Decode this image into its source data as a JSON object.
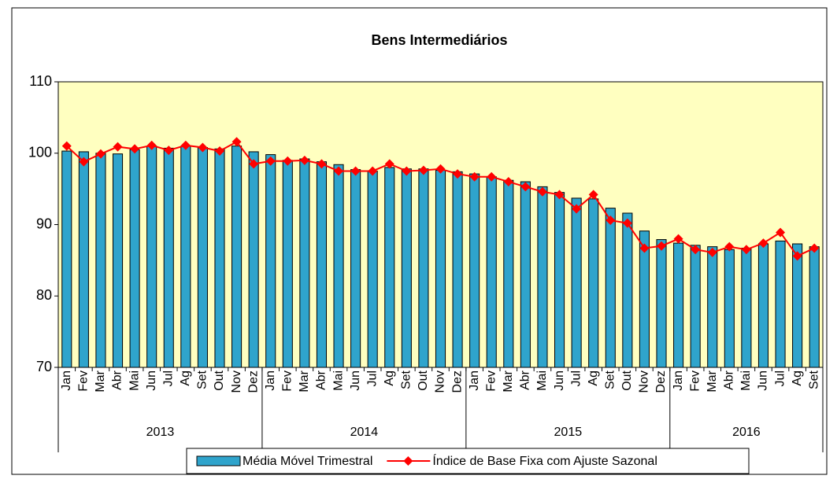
{
  "chart_data": {
    "type": "bar_line",
    "title": "Bens Intermediários",
    "categories": [
      "Jan",
      "Fev",
      "Mar",
      "Abr",
      "Mai",
      "Jun",
      "Jul",
      "Ag",
      "Set",
      "Out",
      "Nov",
      "Dez",
      "Jan",
      "Fev",
      "Mar",
      "Abr",
      "Mai",
      "Jun",
      "Jul",
      "Ag",
      "Set",
      "Out",
      "Nov",
      "Dez",
      "Jan",
      "Fev",
      "Mar",
      "Abr",
      "Mai",
      "Jun",
      "Jul",
      "Ag",
      "Set",
      "Out",
      "Nov",
      "Dez",
      "Jan",
      "Fev",
      "Mar",
      "Abr",
      "Mai",
      "Jun",
      "Jul",
      "Ag",
      "Set"
    ],
    "year_groups": [
      {
        "label": "2013",
        "span": 12
      },
      {
        "label": "2014",
        "span": 12
      },
      {
        "label": "2015",
        "span": 12
      },
      {
        "label": "2016",
        "span": 9
      }
    ],
    "series": [
      {
        "name": "Média Móvel Trimestral",
        "type": "bar",
        "color": "#2fa4cc",
        "values": [
          100.3,
          100.2,
          100.0,
          99.9,
          100.5,
          101.0,
          100.7,
          101.0,
          100.8,
          100.6,
          101.0,
          100.2,
          99.8,
          99.0,
          99.2,
          98.8,
          98.4,
          97.7,
          97.5,
          98.0,
          97.8,
          97.8,
          97.6,
          97.4,
          97.1,
          96.7,
          96.2,
          96.0,
          95.3,
          94.5,
          93.7,
          93.6,
          92.3,
          91.6,
          89.1,
          87.9,
          87.4,
          87.1,
          86.9,
          86.5,
          86.7,
          87.3,
          87.7,
          87.3,
          86.9
        ]
      },
      {
        "name": "Índice de Base Fixa com Ajuste Sazonal",
        "type": "line",
        "color": "#ff0000",
        "values": [
          101.0,
          98.8,
          99.9,
          100.9,
          100.6,
          101.1,
          100.4,
          101.1,
          100.8,
          100.3,
          101.6,
          98.5,
          98.9,
          98.9,
          99.0,
          98.5,
          97.5,
          97.5,
          97.5,
          98.5,
          97.5,
          97.6,
          97.8,
          97.1,
          96.7,
          96.7,
          96.0,
          95.3,
          94.6,
          94.2,
          92.2,
          94.2,
          90.6,
          90.2,
          86.7,
          87.0,
          88.0,
          86.5,
          86.1,
          86.9,
          86.5,
          87.4,
          88.9,
          85.6,
          86.7
        ]
      }
    ],
    "ylim": [
      70,
      110
    ],
    "yticks": [
      70,
      80,
      90,
      100,
      110
    ],
    "grid": false,
    "background": "#ffffc0"
  }
}
